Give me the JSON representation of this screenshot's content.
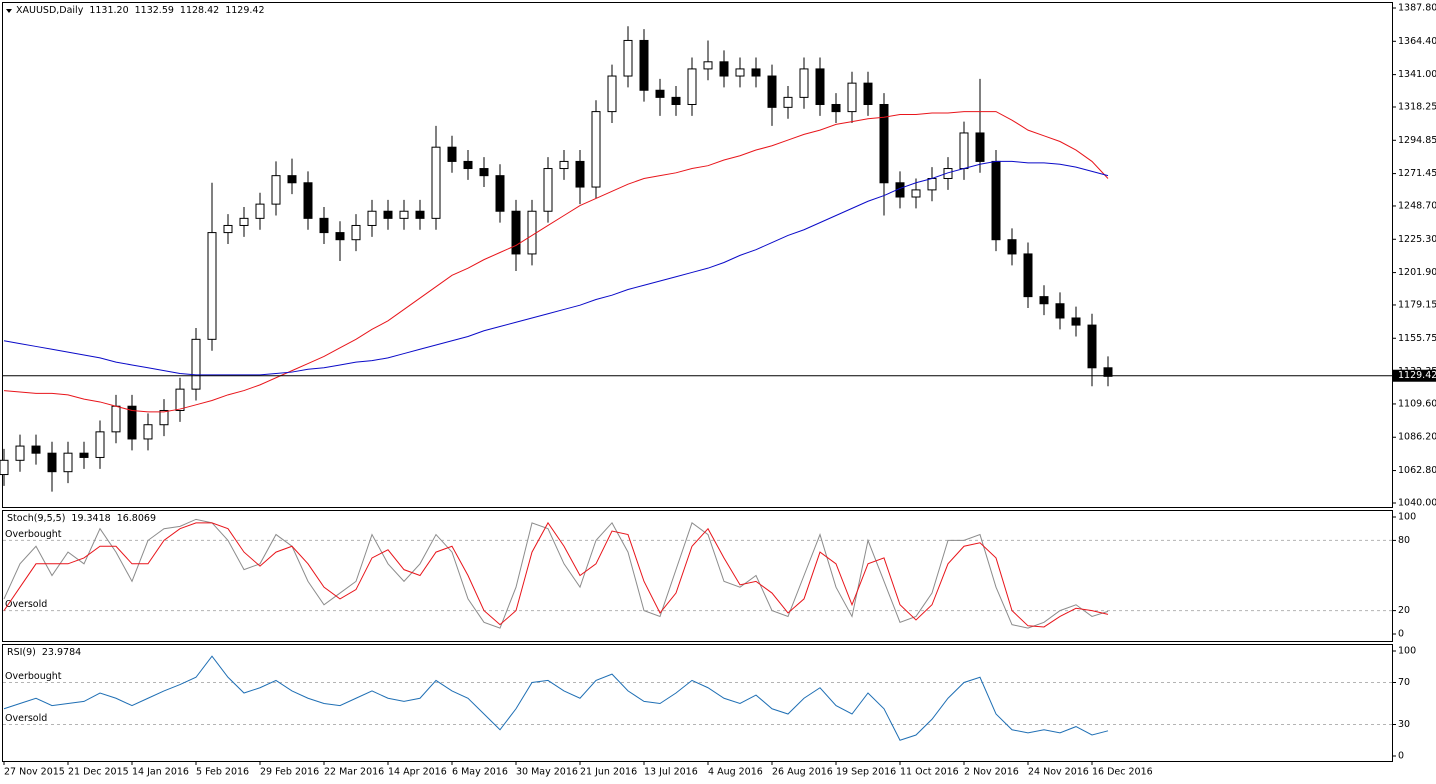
{
  "chart_data": [
    {
      "type": "candlestick",
      "title": "XAUUSD,Daily",
      "readout": [
        "1131.20",
        "1132.59",
        "1128.42",
        "1129.42"
      ],
      "categories": [
        "27 Nov 2015",
        null,
        null,
        null,
        "21 Dec 2015",
        null,
        null,
        null,
        "14 Jan 2016",
        null,
        null,
        null,
        "5 Feb 2016",
        null,
        null,
        null,
        "29 Feb 2016",
        null,
        null,
        null,
        "22 Mar 2016",
        null,
        null,
        null,
        "14 Apr 2016",
        null,
        null,
        null,
        "6 May 2016",
        null,
        null,
        null,
        "30 May 2016",
        null,
        null,
        null,
        "21 Jun 2016",
        null,
        null,
        null,
        "13 Jul 2016",
        null,
        null,
        null,
        "4 Aug 2016",
        null,
        null,
        null,
        "26 Aug 2016",
        null,
        null,
        null,
        "19 Sep 2016",
        null,
        null,
        null,
        "11 Oct 2016",
        null,
        null,
        null,
        "2 Nov 2016",
        null,
        null,
        null,
        "24 Nov 2016",
        null,
        null,
        null,
        "16 Dec 2016",
        null
      ],
      "open": [
        1060,
        1070,
        1080,
        1075,
        1062,
        1075,
        1072,
        1090,
        1108,
        1085,
        1095,
        1105,
        1120,
        1155,
        1230,
        1235,
        1240,
        1250,
        1270,
        1265,
        1240,
        1230,
        1225,
        1235,
        1245,
        1240,
        1245,
        1240,
        1290,
        1280,
        1275,
        1270,
        1245,
        1215,
        1245,
        1275,
        1280,
        1262,
        1315,
        1340,
        1365,
        1330,
        1325,
        1320,
        1345,
        1350,
        1340,
        1345,
        1340,
        1318,
        1325,
        1345,
        1320,
        1315,
        1335,
        1320,
        1265,
        1255,
        1260,
        1268,
        1275,
        1300,
        1280,
        1225,
        1215,
        1185,
        1180,
        1170,
        1165,
        1135
      ],
      "high": [
        1078,
        1088,
        1088,
        1083,
        1083,
        1083,
        1098,
        1116,
        1116,
        1103,
        1113,
        1128,
        1163,
        1265,
        1243,
        1248,
        1258,
        1280,
        1282,
        1273,
        1248,
        1238,
        1243,
        1253,
        1253,
        1253,
        1253,
        1305,
        1298,
        1288,
        1283,
        1278,
        1253,
        1253,
        1283,
        1288,
        1288,
        1323,
        1348,
        1375,
        1373,
        1338,
        1333,
        1353,
        1365,
        1358,
        1353,
        1353,
        1348,
        1333,
        1353,
        1353,
        1328,
        1343,
        1343,
        1328,
        1273,
        1268,
        1276,
        1283,
        1308,
        1338,
        1288,
        1233,
        1223,
        1193,
        1188,
        1178,
        1173,
        1143
      ],
      "low": [
        1052,
        1062,
        1067,
        1048,
        1054,
        1064,
        1064,
        1082,
        1077,
        1077,
        1087,
        1097,
        1112,
        1147,
        1222,
        1227,
        1232,
        1242,
        1257,
        1232,
        1222,
        1210,
        1217,
        1227,
        1232,
        1232,
        1232,
        1232,
        1272,
        1267,
        1262,
        1237,
        1203,
        1207,
        1237,
        1267,
        1250,
        1254,
        1307,
        1332,
        1322,
        1312,
        1312,
        1312,
        1337,
        1332,
        1332,
        1332,
        1305,
        1310,
        1317,
        1312,
        1307,
        1307,
        1312,
        1242,
        1247,
        1247,
        1252,
        1260,
        1267,
        1272,
        1217,
        1207,
        1177,
        1172,
        1162,
        1157,
        1122,
        1122
      ],
      "close": [
        1070,
        1080,
        1075,
        1062,
        1075,
        1072,
        1090,
        1108,
        1085,
        1095,
        1105,
        1120,
        1155,
        1230,
        1235,
        1240,
        1250,
        1270,
        1265,
        1240,
        1230,
        1225,
        1235,
        1245,
        1240,
        1245,
        1240,
        1290,
        1280,
        1275,
        1270,
        1245,
        1215,
        1245,
        1275,
        1280,
        1262,
        1315,
        1340,
        1365,
        1330,
        1325,
        1320,
        1345,
        1350,
        1340,
        1345,
        1340,
        1318,
        1325,
        1345,
        1320,
        1315,
        1335,
        1320,
        1265,
        1255,
        1260,
        1268,
        1275,
        1300,
        1280,
        1225,
        1215,
        1185,
        1180,
        1170,
        1165,
        1135,
        1129
      ],
      "series": [
        {
          "color": "#e8151b",
          "values": [
            1119,
            1118,
            1117,
            1117,
            1116,
            1113,
            1111,
            1108,
            1105,
            1104,
            1104,
            1106,
            1109,
            1112,
            1116,
            1119,
            1123,
            1128,
            1133,
            1138,
            1143,
            1149,
            1155,
            1162,
            1168,
            1176,
            1184,
            1192,
            1200,
            1205,
            1211,
            1216,
            1221,
            1228,
            1235,
            1242,
            1249,
            1254,
            1259,
            1264,
            1268,
            1270,
            1272,
            1275,
            1277,
            1281,
            1284,
            1288,
            1291,
            1295,
            1299,
            1302,
            1306,
            1308,
            1310,
            1311,
            1313,
            1313,
            1314,
            1314,
            1315,
            1315,
            1315,
            1309,
            1302,
            1298,
            1294,
            1288,
            1280,
            1268
          ]
        },
        {
          "color": "#0a0ac8",
          "values": [
            1154,
            1152,
            1150,
            1148,
            1146,
            1144,
            1142,
            1139,
            1137,
            1135,
            1133,
            1131,
            1130,
            1130,
            1130,
            1130,
            1130,
            1131,
            1132,
            1134,
            1135,
            1137,
            1139,
            1140,
            1142,
            1145,
            1148,
            1151,
            1154,
            1157,
            1161,
            1164,
            1167,
            1170,
            1173,
            1176,
            1179,
            1183,
            1186,
            1190,
            1193,
            1196,
            1199,
            1202,
            1205,
            1209,
            1214,
            1218,
            1223,
            1228,
            1232,
            1237,
            1242,
            1247,
            1252,
            1256,
            1261,
            1265,
            1268,
            1272,
            1275,
            1278,
            1280,
            1280,
            1279,
            1279,
            1278,
            1276,
            1273,
            1270
          ]
        }
      ],
      "current_price": {
        "value": 1129.42,
        "label": "1129.42"
      },
      "ylim": [
        1040,
        1387.8
      ],
      "yticks": [
        {
          "value": 1040,
          "label": "1040.00"
        },
        {
          "value": 1062.8,
          "label": "1062.80"
        },
        {
          "value": 1086.2,
          "label": "1086.20"
        },
        {
          "value": 1109.6,
          "label": "1109.60"
        },
        {
          "value": 1132.35,
          "label": "1132.35"
        },
        {
          "value": 1155.75,
          "label": "1155.75"
        },
        {
          "value": 1179.15,
          "label": "1179.15"
        },
        {
          "value": 1201.9,
          "label": "1201.90"
        },
        {
          "value": 1225.3,
          "label": "1225.30"
        },
        {
          "value": 1248.7,
          "label": "1248.70"
        },
        {
          "value": 1271.45,
          "label": "1271.45"
        },
        {
          "value": 1294.85,
          "label": "1294.85"
        },
        {
          "value": 1318.25,
          "label": "1318.25"
        },
        {
          "value": 1341,
          "label": "1341.00"
        },
        {
          "value": 1364.4,
          "label": "1364.40"
        },
        {
          "value": 1387.8,
          "label": "1387.80"
        }
      ],
      "bull_color": "#ffffff",
      "bear_color": "#000000"
    },
    {
      "type": "line",
      "title": "Stoch(9,5,5)",
      "readout": [
        "19.3418",
        "16.8069"
      ],
      "series": [
        {
          "color": "#8c8c8c",
          "values": [
            30,
            60,
            75,
            50,
            70,
            60,
            90,
            70,
            45,
            80,
            90,
            92,
            98,
            95,
            80,
            55,
            60,
            85,
            75,
            45,
            25,
            35,
            45,
            85,
            60,
            45,
            60,
            85,
            70,
            30,
            10,
            5,
            40,
            95,
            90,
            60,
            40,
            80,
            95,
            70,
            20,
            15,
            55,
            95,
            85,
            45,
            40,
            50,
            20,
            15,
            50,
            85,
            40,
            15,
            80,
            45,
            10,
            15,
            35,
            80,
            80,
            85,
            40,
            8,
            5,
            10,
            20,
            25,
            15,
            19.34
          ]
        },
        {
          "color": "#e8151b",
          "values": [
            20,
            40,
            60,
            60,
            60,
            65,
            75,
            75,
            60,
            60,
            80,
            90,
            95,
            95,
            90,
            70,
            58,
            70,
            75,
            60,
            40,
            30,
            38,
            65,
            72,
            55,
            50,
            70,
            75,
            50,
            20,
            8,
            20,
            70,
            95,
            75,
            50,
            60,
            88,
            85,
            45,
            18,
            35,
            75,
            90,
            65,
            42,
            45,
            35,
            18,
            30,
            70,
            60,
            25,
            60,
            65,
            25,
            12,
            25,
            60,
            75,
            78,
            65,
            20,
            7,
            6,
            15,
            22,
            20,
            16.81
          ]
        }
      ],
      "levels": [
        {
          "value": 80,
          "label": "Overbought"
        },
        {
          "value": 20,
          "label": "Oversold"
        }
      ],
      "ylim": [
        0,
        100
      ],
      "yticks": [
        0,
        20,
        80,
        100
      ]
    },
    {
      "type": "line",
      "title": "RSI(9)",
      "readout": [
        "23.9784"
      ],
      "series": [
        {
          "color": "#1f6fb4",
          "values": [
            45,
            50,
            55,
            48,
            50,
            52,
            60,
            55,
            48,
            55,
            62,
            68,
            75,
            95,
            75,
            60,
            65,
            72,
            62,
            55,
            50,
            48,
            55,
            62,
            55,
            52,
            55,
            72,
            62,
            55,
            40,
            25,
            45,
            70,
            72,
            62,
            55,
            72,
            78,
            62,
            52,
            50,
            60,
            72,
            65,
            55,
            50,
            58,
            45,
            40,
            55,
            65,
            48,
            40,
            60,
            45,
            15,
            20,
            35,
            55,
            70,
            75,
            40,
            25,
            22,
            25,
            22,
            28,
            20,
            24
          ]
        }
      ],
      "levels": [
        {
          "value": 70,
          "label": "Overbought"
        },
        {
          "value": 30,
          "label": "Oversold"
        }
      ],
      "ylim": [
        0,
        100
      ],
      "yticks": [
        0,
        30,
        70,
        100
      ]
    }
  ]
}
